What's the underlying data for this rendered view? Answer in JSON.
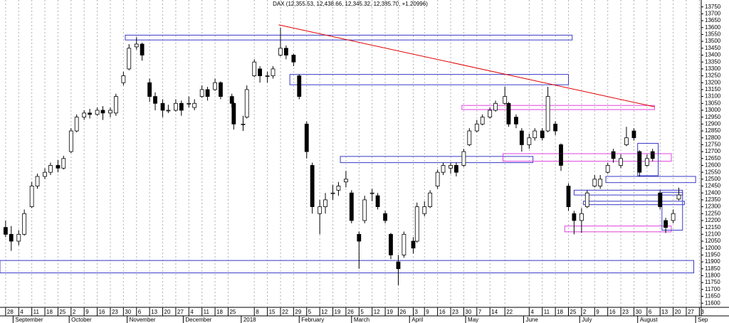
{
  "chart_data": {
    "type": "candlestick",
    "title": "DAX (12,355.53, 12,438.66, 12,345.32, 12,385.70, +1.20996)",
    "color_up": "#ffffff",
    "color_down": "#000000",
    "xlim": [
      "2017-08-25",
      "2018-09-04"
    ],
    "ylim": [
      11570,
      13800
    ],
    "xgrid": true,
    "yticks": [
      11600,
      11650,
      11700,
      11750,
      11800,
      11850,
      11900,
      11950,
      12000,
      12050,
      12100,
      12150,
      12200,
      12250,
      12300,
      12350,
      12400,
      12450,
      12500,
      12550,
      12600,
      12650,
      12700,
      12750,
      12800,
      12850,
      12900,
      12950,
      13000,
      13050,
      13100,
      13150,
      13200,
      13250,
      13300,
      13350,
      13400,
      13450,
      13500,
      13550,
      13600,
      13650,
      13700,
      13750
    ],
    "xticks": [
      {
        "value": "2017-08-28",
        "label": "28"
      },
      {
        "value": "2017-09-04",
        "label": "4"
      },
      {
        "value": "2017-09-11",
        "label": "11"
      },
      {
        "value": "2017-09-18",
        "label": "18"
      },
      {
        "value": "2017-09-25",
        "label": "25"
      },
      {
        "value": "2017-10-02",
        "label": "2"
      },
      {
        "value": "2017-10-09",
        "label": "9"
      },
      {
        "value": "2017-10-16",
        "label": "16"
      },
      {
        "value": "2017-10-23",
        "label": "23"
      },
      {
        "value": "2017-10-30",
        "label": "30"
      },
      {
        "value": "2017-11-06",
        "label": "6"
      },
      {
        "value": "2017-11-13",
        "label": "13"
      },
      {
        "value": "2017-11-20",
        "label": "20"
      },
      {
        "value": "2017-11-27",
        "label": "27"
      },
      {
        "value": "2017-12-04",
        "label": "4"
      },
      {
        "value": "2017-12-11",
        "label": "11"
      },
      {
        "value": "2017-12-18",
        "label": "18"
      },
      {
        "value": "2017-12-25",
        "label": "25"
      },
      {
        "value": "2018-01-08",
        "label": "8"
      },
      {
        "value": "2018-01-15",
        "label": "15"
      },
      {
        "value": "2018-01-22",
        "label": "22"
      },
      {
        "value": "2018-01-29",
        "label": "29"
      },
      {
        "value": "2018-02-05",
        "label": "5"
      },
      {
        "value": "2018-02-12",
        "label": "12"
      },
      {
        "value": "2018-02-19",
        "label": "19"
      },
      {
        "value": "2018-02-26",
        "label": "26"
      },
      {
        "value": "2018-03-05",
        "label": "5"
      },
      {
        "value": "2018-03-12",
        "label": "12"
      },
      {
        "value": "2018-03-19",
        "label": "19"
      },
      {
        "value": "2018-03-26",
        "label": "26"
      },
      {
        "value": "2018-04-03",
        "label": "3"
      },
      {
        "value": "2018-04-09",
        "label": "9"
      },
      {
        "value": "2018-04-16",
        "label": "16"
      },
      {
        "value": "2018-04-23",
        "label": "23"
      },
      {
        "value": "2018-04-30",
        "label": "30"
      },
      {
        "value": "2018-05-07",
        "label": "7"
      },
      {
        "value": "2018-05-14",
        "label": "14"
      },
      {
        "value": "2018-05-22",
        "label": "22"
      },
      {
        "value": "2018-06-04",
        "label": "4"
      },
      {
        "value": "2018-06-11",
        "label": "11"
      },
      {
        "value": "2018-06-18",
        "label": "18"
      },
      {
        "value": "2018-06-25",
        "label": "25"
      },
      {
        "value": "2018-07-02",
        "label": "2"
      },
      {
        "value": "2018-07-09",
        "label": "9"
      },
      {
        "value": "2018-07-16",
        "label": "16"
      },
      {
        "value": "2018-07-23",
        "label": "23"
      },
      {
        "value": "2018-07-30",
        "label": "30"
      },
      {
        "value": "2018-08-06",
        "label": "6"
      },
      {
        "value": "2018-08-13",
        "label": "13"
      },
      {
        "value": "2018-08-20",
        "label": "20"
      },
      {
        "value": "2018-08-27",
        "label": "27"
      },
      {
        "value": "2018-09-03",
        "label": "3"
      }
    ],
    "months": [
      {
        "value": "2017-09-01",
        "label": "September"
      },
      {
        "value": "2017-10-01",
        "label": "October"
      },
      {
        "value": "2017-11-01",
        "label": "November"
      },
      {
        "value": "2017-12-01",
        "label": "December"
      },
      {
        "value": "2018-01-01",
        "label": "2018"
      },
      {
        "value": "2018-02-01",
        "label": "February"
      },
      {
        "value": "2018-03-01",
        "label": "March"
      },
      {
        "value": "2018-04-01",
        "label": "April"
      },
      {
        "value": "2018-05-01",
        "label": "May"
      },
      {
        "value": "2018-06-01",
        "label": "June"
      },
      {
        "value": "2018-07-01",
        "label": "July"
      },
      {
        "value": "2018-08-01",
        "label": "August"
      },
      {
        "value": "2018-09-01",
        "label": "Sep"
      }
    ],
    "x": [
      "2017-08-28",
      "2017-08-31",
      "2017-09-04",
      "2017-09-07",
      "2017-09-11",
      "2017-09-14",
      "2017-09-18",
      "2017-09-21",
      "2017-09-25",
      "2017-09-28",
      "2017-10-02",
      "2017-10-05",
      "2017-10-09",
      "2017-10-12",
      "2017-10-16",
      "2017-10-19",
      "2017-10-23",
      "2017-10-26",
      "2017-10-30",
      "2017-11-02",
      "2017-11-06",
      "2017-11-09",
      "2017-11-13",
      "2017-11-16",
      "2017-11-20",
      "2017-11-23",
      "2017-11-27",
      "2017-11-30",
      "2017-12-04",
      "2017-12-07",
      "2017-12-11",
      "2017-12-14",
      "2017-12-18",
      "2017-12-21",
      "2017-12-27",
      "2017-12-28",
      "2018-01-02",
      "2018-01-04",
      "2018-01-08",
      "2018-01-11",
      "2018-01-15",
      "2018-01-18",
      "2018-01-22",
      "2018-01-25",
      "2018-01-29",
      "2018-02-01",
      "2018-02-05",
      "2018-02-08",
      "2018-02-12",
      "2018-02-15",
      "2018-02-19",
      "2018-02-22",
      "2018-02-26",
      "2018-03-01",
      "2018-03-05",
      "2018-03-08",
      "2018-03-12",
      "2018-03-15",
      "2018-03-19",
      "2018-03-22",
      "2018-03-26",
      "2018-03-29",
      "2018-04-03",
      "2018-04-05",
      "2018-04-09",
      "2018-04-12",
      "2018-04-16",
      "2018-04-19",
      "2018-04-23",
      "2018-04-26",
      "2018-04-30",
      "2018-05-03",
      "2018-05-07",
      "2018-05-10",
      "2018-05-14",
      "2018-05-17",
      "2018-05-22",
      "2018-05-24",
      "2018-05-28",
      "2018-05-31",
      "2018-06-04",
      "2018-06-07",
      "2018-06-11",
      "2018-06-14",
      "2018-06-18",
      "2018-06-21",
      "2018-06-25",
      "2018-06-28",
      "2018-07-02",
      "2018-07-05",
      "2018-07-09",
      "2018-07-12",
      "2018-07-16",
      "2018-07-19",
      "2018-07-23",
      "2018-07-26",
      "2018-07-30",
      "2018-08-02",
      "2018-08-06",
      "2018-08-09",
      "2018-08-13",
      "2018-08-16",
      "2018-08-20",
      "2018-08-23"
    ],
    "ohlc": [
      [
        12150,
        12200,
        12080,
        12100
      ],
      [
        12100,
        12160,
        11980,
        12050
      ],
      [
        12050,
        12130,
        12020,
        12100
      ],
      [
        12100,
        12280,
        12090,
        12250
      ],
      [
        12300,
        12480,
        12290,
        12450
      ],
      [
        12450,
        12540,
        12430,
        12520
      ],
      [
        12520,
        12580,
        12500,
        12550
      ],
      [
        12550,
        12620,
        12530,
        12600
      ],
      [
        12600,
        12640,
        12550,
        12580
      ],
      [
        12580,
        12670,
        12570,
        12650
      ],
      [
        12700,
        12870,
        12690,
        12850
      ],
      [
        12850,
        12970,
        12840,
        12950
      ],
      [
        12950,
        13000,
        12930,
        12980
      ],
      [
        12980,
        13010,
        12940,
        12970
      ],
      [
        12970,
        13020,
        12960,
        13000
      ],
      [
        13000,
        13030,
        12930,
        12980
      ],
      [
        12980,
        13020,
        12950,
        13000
      ],
      [
        12980,
        13120,
        12960,
        13100
      ],
      [
        13200,
        13280,
        13180,
        13250
      ],
      [
        13300,
        13480,
        13290,
        13450
      ],
      [
        13460,
        13530,
        13440,
        13480
      ],
      [
        13480,
        13490,
        13360,
        13400
      ],
      [
        13200,
        13230,
        13060,
        13100
      ],
      [
        13100,
        13130,
        13000,
        13050
      ],
      [
        13050,
        13080,
        12950,
        13000
      ],
      [
        13000,
        13040,
        12980,
        13000
      ],
      [
        13000,
        13080,
        12990,
        13050
      ],
      [
        13050,
        13070,
        12960,
        13000
      ],
      [
        13050,
        13100,
        13020,
        13050
      ],
      [
        13020,
        13080,
        13000,
        13050
      ],
      [
        13100,
        13180,
        13090,
        13150
      ],
      [
        13150,
        13170,
        13070,
        13100
      ],
      [
        13150,
        13230,
        13140,
        13200
      ],
      [
        13200,
        13210,
        13080,
        13100
      ],
      [
        13100,
        13120,
        13020,
        13050
      ],
      [
        13050,
        13060,
        12860,
        12900
      ],
      [
        12900,
        12960,
        12850,
        12900
      ],
      [
        12950,
        13180,
        12940,
        13150
      ],
      [
        13250,
        13370,
        13240,
        13350
      ],
      [
        13300,
        13320,
        13200,
        13250
      ],
      [
        13250,
        13280,
        13200,
        13250
      ],
      [
        13250,
        13320,
        13230,
        13300
      ],
      [
        13400,
        13600,
        13390,
        13450
      ],
      [
        13450,
        13470,
        13370,
        13400
      ],
      [
        13400,
        13410,
        13320,
        13350
      ],
      [
        13250,
        13260,
        13080,
        13100
      ],
      [
        12900,
        12920,
        12650,
        12700
      ],
      [
        12600,
        12620,
        12250,
        12300
      ],
      [
        12250,
        12350,
        12100,
        12300
      ],
      [
        12300,
        12400,
        12250,
        12350
      ],
      [
        12400,
        12460,
        12350,
        12400
      ],
      [
        12420,
        12480,
        12380,
        12450
      ],
      [
        12480,
        12560,
        12440,
        12500
      ],
      [
        12400,
        12420,
        12180,
        12200
      ],
      [
        12100,
        12120,
        11850,
        12050
      ],
      [
        12200,
        12380,
        12180,
        12350
      ],
      [
        12400,
        12430,
        12340,
        12400
      ],
      [
        12380,
        12400,
        12280,
        12300
      ],
      [
        12250,
        12270,
        12180,
        12200
      ],
      [
        12100,
        12110,
        11920,
        11950
      ],
      [
        11900,
        11950,
        11730,
        11850
      ],
      [
        11950,
        12120,
        11930,
        12100
      ],
      [
        12050,
        12080,
        11960,
        12000
      ],
      [
        12050,
        12330,
        12040,
        12300
      ],
      [
        12250,
        12340,
        12230,
        12300
      ],
      [
        12300,
        12420,
        12290,
        12400
      ],
      [
        12450,
        12570,
        12430,
        12550
      ],
      [
        12550,
        12620,
        12530,
        12600
      ],
      [
        12580,
        12620,
        12540,
        12600
      ],
      [
        12600,
        12620,
        12520,
        12550
      ],
      [
        12600,
        12720,
        12590,
        12700
      ],
      [
        12750,
        12870,
        12740,
        12850
      ],
      [
        12850,
        12930,
        12840,
        12900
      ],
      [
        12900,
        12970,
        12890,
        12950
      ],
      [
        12950,
        13020,
        12940,
        13000
      ],
      [
        13000,
        13070,
        12990,
        13050
      ],
      [
        13050,
        13170,
        13040,
        13100
      ],
      [
        13050,
        13060,
        12880,
        12900
      ],
      [
        12950,
        12970,
        12870,
        12900
      ],
      [
        12850,
        12870,
        12700,
        12750
      ],
      [
        12750,
        12830,
        12720,
        12800
      ],
      [
        12800,
        12870,
        12780,
        12850
      ],
      [
        12850,
        12870,
        12780,
        12800
      ],
      [
        12850,
        13170,
        12840,
        13100
      ],
      [
        12900,
        12920,
        12820,
        12850
      ],
      [
        12750,
        12760,
        12560,
        12600
      ],
      [
        12450,
        12470,
        12270,
        12300
      ],
      [
        12250,
        12270,
        12100,
        12200
      ],
      [
        12200,
        12290,
        12110,
        12250
      ],
      [
        12300,
        12420,
        12290,
        12400
      ],
      [
        12450,
        12530,
        12440,
        12500
      ],
      [
        12450,
        12530,
        12430,
        12500
      ],
      [
        12550,
        12620,
        12540,
        12600
      ],
      [
        12700,
        12720,
        12620,
        12650
      ],
      [
        12600,
        12680,
        12580,
        12650
      ],
      [
        12750,
        12880,
        12740,
        12800
      ],
      [
        12850,
        12870,
        12780,
        12800
      ],
      [
        12700,
        12710,
        12520,
        12550
      ],
      [
        12600,
        12680,
        12590,
        12650
      ],
      [
        12700,
        12720,
        12630,
        12650
      ],
      [
        12400,
        12420,
        12280,
        12300
      ],
      [
        12200,
        12220,
        12110,
        12150
      ],
      [
        12200,
        12280,
        12180,
        12250
      ],
      [
        12355.53,
        12438.66,
        12345.32,
        12385.7
      ]
    ],
    "zones": [
      {
        "x": [
          "2017-10-31",
          "2018-06-27"
        ],
        "y": [
          13510,
          13545
        ],
        "color": "#3a3ac8"
      },
      {
        "x": [
          "2018-01-27",
          "2018-06-25"
        ],
        "y": [
          13185,
          13260
        ],
        "color": "#3a3ac8"
      },
      {
        "x": [
          "2018-02-23",
          "2018-06-06"
        ],
        "y": [
          12620,
          12665
        ],
        "color": "#3a3ac8"
      },
      {
        "x": [
          "2017-08-25",
          "2018-08-31"
        ],
        "y": [
          11820,
          11910
        ],
        "color": "#3a3ac8"
      },
      {
        "x": [
          "2018-04-29",
          "2018-08-10"
        ],
        "y": [
          13005,
          13035
        ],
        "color": "#e040e0"
      },
      {
        "x": [
          "2018-05-21",
          "2018-08-19"
        ],
        "y": [
          12630,
          12685
        ],
        "color": "#e040e0"
      },
      {
        "x": [
          "2018-08-01",
          "2018-08-12"
        ],
        "y": [
          12525,
          12760
        ],
        "color": "#3a3ac8"
      },
      {
        "x": [
          "2018-07-15",
          "2018-09-01"
        ],
        "y": [
          12475,
          12520
        ],
        "color": "#3a3ac8"
      },
      {
        "x": [
          "2018-06-28",
          "2018-08-25"
        ],
        "y": [
          12385,
          12420
        ],
        "color": "#3a3ac8"
      },
      {
        "x": [
          "2018-07-03",
          "2018-08-26"
        ],
        "y": [
          12315,
          12340
        ],
        "color": "#3a3ac8"
      },
      {
        "x": [
          "2018-06-23",
          "2018-08-19"
        ],
        "y": [
          12118,
          12160
        ],
        "color": "#e040e0"
      },
      {
        "x": [
          "2018-08-14",
          "2018-08-25"
        ],
        "y": [
          12130,
          12405
        ],
        "color": "#3a3ac8"
      }
    ],
    "trendline": {
      "x": [
        "2018-01-21",
        "2018-08-10"
      ],
      "y": [
        13620,
        13025
      ],
      "color": "#e00000"
    }
  }
}
